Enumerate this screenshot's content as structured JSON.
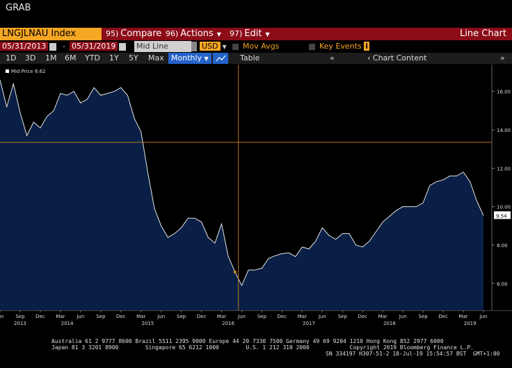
{
  "window": {
    "title": "GRAB"
  },
  "header": {
    "ticker": "LNGJLNAU Index",
    "menus": [
      {
        "num": "95)",
        "label": "Compare"
      },
      {
        "num": "96)",
        "label": "Actions"
      },
      {
        "num": "97)",
        "label": "Edit"
      }
    ],
    "view": "Line Chart"
  },
  "range": {
    "start": "05/31/2013",
    "end": "05/31/2019",
    "field": "Mid Line",
    "currency": "USD",
    "mov_avgs": "Mov Avgs",
    "key_events": "Key Events",
    "key_events_icon": "i"
  },
  "toolbar": {
    "periods": [
      "1D",
      "3D",
      "1M",
      "6M",
      "YTD",
      "1Y",
      "5Y",
      "Max"
    ],
    "frequency": "Monthly",
    "table": "Table",
    "chart_content": "Chart Content"
  },
  "chart_data": {
    "type": "area",
    "legend": "Mid Price 6.62",
    "last_value_label": "9.54",
    "ylim": [
      4.6,
      17.4
    ],
    "yticks": [
      6,
      8,
      10,
      12,
      14,
      16
    ],
    "ytick_labels": [
      "6.00",
      "8.00",
      "10.00",
      "12.00",
      "14.00",
      "16.00"
    ],
    "crosshair_value": 13.35,
    "crosshair_index": 35.5,
    "x_labels": [
      {
        "i": 0,
        "label": "Jun"
      },
      {
        "i": 3,
        "label": "Sep"
      },
      {
        "i": 6,
        "label": "Dec"
      },
      {
        "i": 9,
        "label": "Mar"
      },
      {
        "i": 12,
        "label": "Jun"
      },
      {
        "i": 15,
        "label": "Sep"
      },
      {
        "i": 18,
        "label": "Dec"
      },
      {
        "i": 21,
        "label": "Mar"
      },
      {
        "i": 24,
        "label": "Jun"
      },
      {
        "i": 27,
        "label": "Sep"
      },
      {
        "i": 30,
        "label": "Dec"
      },
      {
        "i": 33,
        "label": "Mar"
      },
      {
        "i": 36,
        "label": "Jun"
      },
      {
        "i": 39,
        "label": "Sep"
      },
      {
        "i": 42,
        "label": "Dec"
      },
      {
        "i": 45,
        "label": "Mar"
      },
      {
        "i": 48,
        "label": "Jun"
      },
      {
        "i": 51,
        "label": "Sep"
      },
      {
        "i": 54,
        "label": "Dec"
      },
      {
        "i": 57,
        "label": "Mar"
      },
      {
        "i": 60,
        "label": "Jun"
      },
      {
        "i": 63,
        "label": "Sep"
      },
      {
        "i": 66,
        "label": "Dec"
      },
      {
        "i": 69,
        "label": "Mar"
      },
      {
        "i": 72,
        "label": "Jun"
      }
    ],
    "year_labels": [
      {
        "i": 3,
        "label": "2013"
      },
      {
        "i": 10,
        "label": "2014"
      },
      {
        "i": 22,
        "label": "2015"
      },
      {
        "i": 34,
        "label": "2016"
      },
      {
        "i": 46,
        "label": "2017"
      },
      {
        "i": 58,
        "label": "2018"
      },
      {
        "i": 70,
        "label": "2019"
      }
    ],
    "values": [
      16.6,
      15.2,
      16.4,
      14.9,
      13.7,
      14.4,
      14.1,
      14.7,
      15.0,
      15.9,
      15.8,
      16.0,
      15.4,
      15.6,
      16.2,
      15.8,
      15.9,
      16.0,
      16.2,
      15.8,
      14.6,
      13.9,
      11.8,
      9.9,
      9.0,
      8.4,
      8.6,
      8.9,
      9.4,
      9.4,
      9.2,
      8.4,
      8.1,
      9.1,
      7.4,
      6.6,
      5.9,
      6.7,
      6.7,
      6.8,
      7.3,
      7.45,
      7.55,
      7.6,
      7.4,
      7.9,
      7.8,
      8.2,
      8.9,
      8.5,
      8.3,
      8.6,
      8.6,
      8.0,
      7.9,
      8.2,
      8.7,
      9.2,
      9.5,
      9.8,
      10.0,
      10.0,
      10.0,
      10.2,
      11.1,
      11.3,
      11.4,
      11.6,
      11.6,
      11.8,
      11.3,
      10.3,
      9.54
    ]
  },
  "footer": {
    "line1": "Australia 61 2 9777 8600 Brazil 5511 2395 9000 Europe 44 20 7330 7500 Germany 49 69 9204 1210 Hong Kong 852 2977 6000",
    "line2": "Japan 81 3 3201 8900        Singapore 65 6212 1000        U.S. 1 212 318 2000            Copyright 2019 Bloomberg Finance L.P.",
    "line3": "SN 334197 H307-51-2 18-Jul-19 15:54:57 BST  GMT+1:00"
  }
}
